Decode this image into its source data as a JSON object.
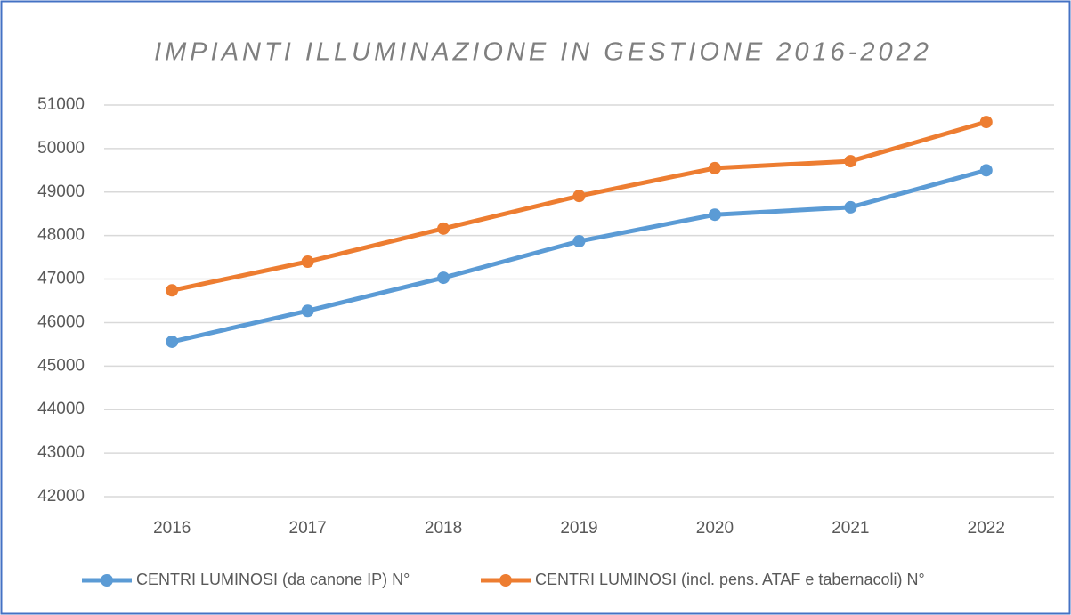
{
  "chart_data": {
    "type": "line",
    "title": "IMPIANTI ILLUMINAZIONE IN GESTIONE 2016-2022",
    "categories": [
      "2016",
      "2017",
      "2018",
      "2019",
      "2020",
      "2021",
      "2022"
    ],
    "series": [
      {
        "name": "CENTRI LUMINOSI (da canone IP) N°",
        "color": "#5b9bd5",
        "values": [
          45560,
          46270,
          47030,
          47870,
          48480,
          48650,
          49500
        ]
      },
      {
        "name": "CENTRI LUMINOSI (incl. pens. ATAF e tabernacoli) N°",
        "color": "#ed7d31",
        "values": [
          46740,
          47400,
          48160,
          48910,
          49550,
          49710,
          50610
        ]
      }
    ],
    "ylim": [
      42000,
      51000
    ],
    "yticks": [
      42000,
      43000,
      44000,
      45000,
      46000,
      47000,
      48000,
      49000,
      50000,
      51000
    ],
    "grid": true,
    "legend": "bottom"
  }
}
